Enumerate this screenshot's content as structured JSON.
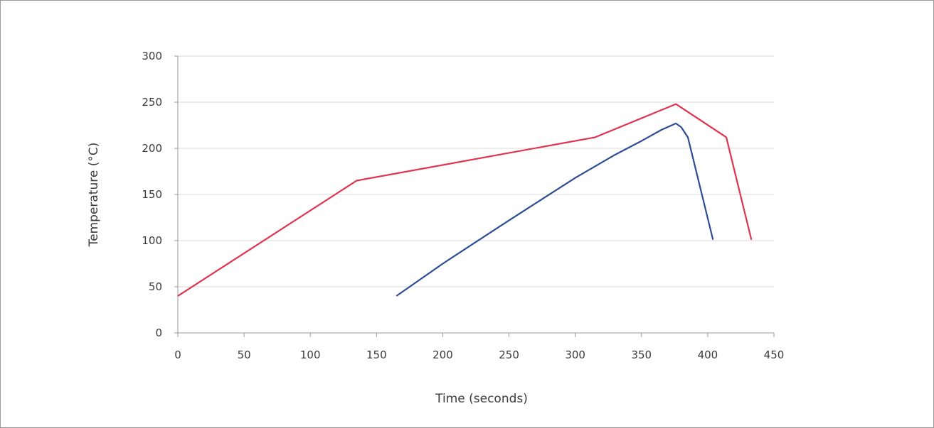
{
  "chart_data": {
    "type": "line",
    "title": "",
    "xlabel": "Time (seconds)",
    "ylabel": "Temperature (°C)",
    "xlim": [
      0,
      450
    ],
    "ylim": [
      0,
      300
    ],
    "xticks": [
      0,
      50,
      100,
      150,
      200,
      250,
      300,
      350,
      400,
      450
    ],
    "yticks": [
      0,
      50,
      100,
      150,
      200,
      250,
      300
    ],
    "grid": "horizontal",
    "legend": "none",
    "series": [
      {
        "color": "#e0334f",
        "points": [
          [
            0,
            40
          ],
          [
            135,
            165
          ],
          [
            315,
            212
          ],
          [
            376,
            248
          ],
          [
            414,
            212
          ],
          [
            433,
            101
          ]
        ]
      },
      {
        "color": "#2e4c96",
        "points": [
          [
            165,
            40
          ],
          [
            200,
            75
          ],
          [
            250,
            122
          ],
          [
            300,
            168
          ],
          [
            330,
            193
          ],
          [
            350,
            208
          ],
          [
            365,
            220
          ],
          [
            376,
            227
          ],
          [
            380,
            223
          ],
          [
            385,
            212
          ],
          [
            404,
            101
          ]
        ]
      }
    ],
    "colors": {
      "axis": "#9a9a9a",
      "grid": "#d9d9d9",
      "text": "#3a3a3a"
    }
  }
}
